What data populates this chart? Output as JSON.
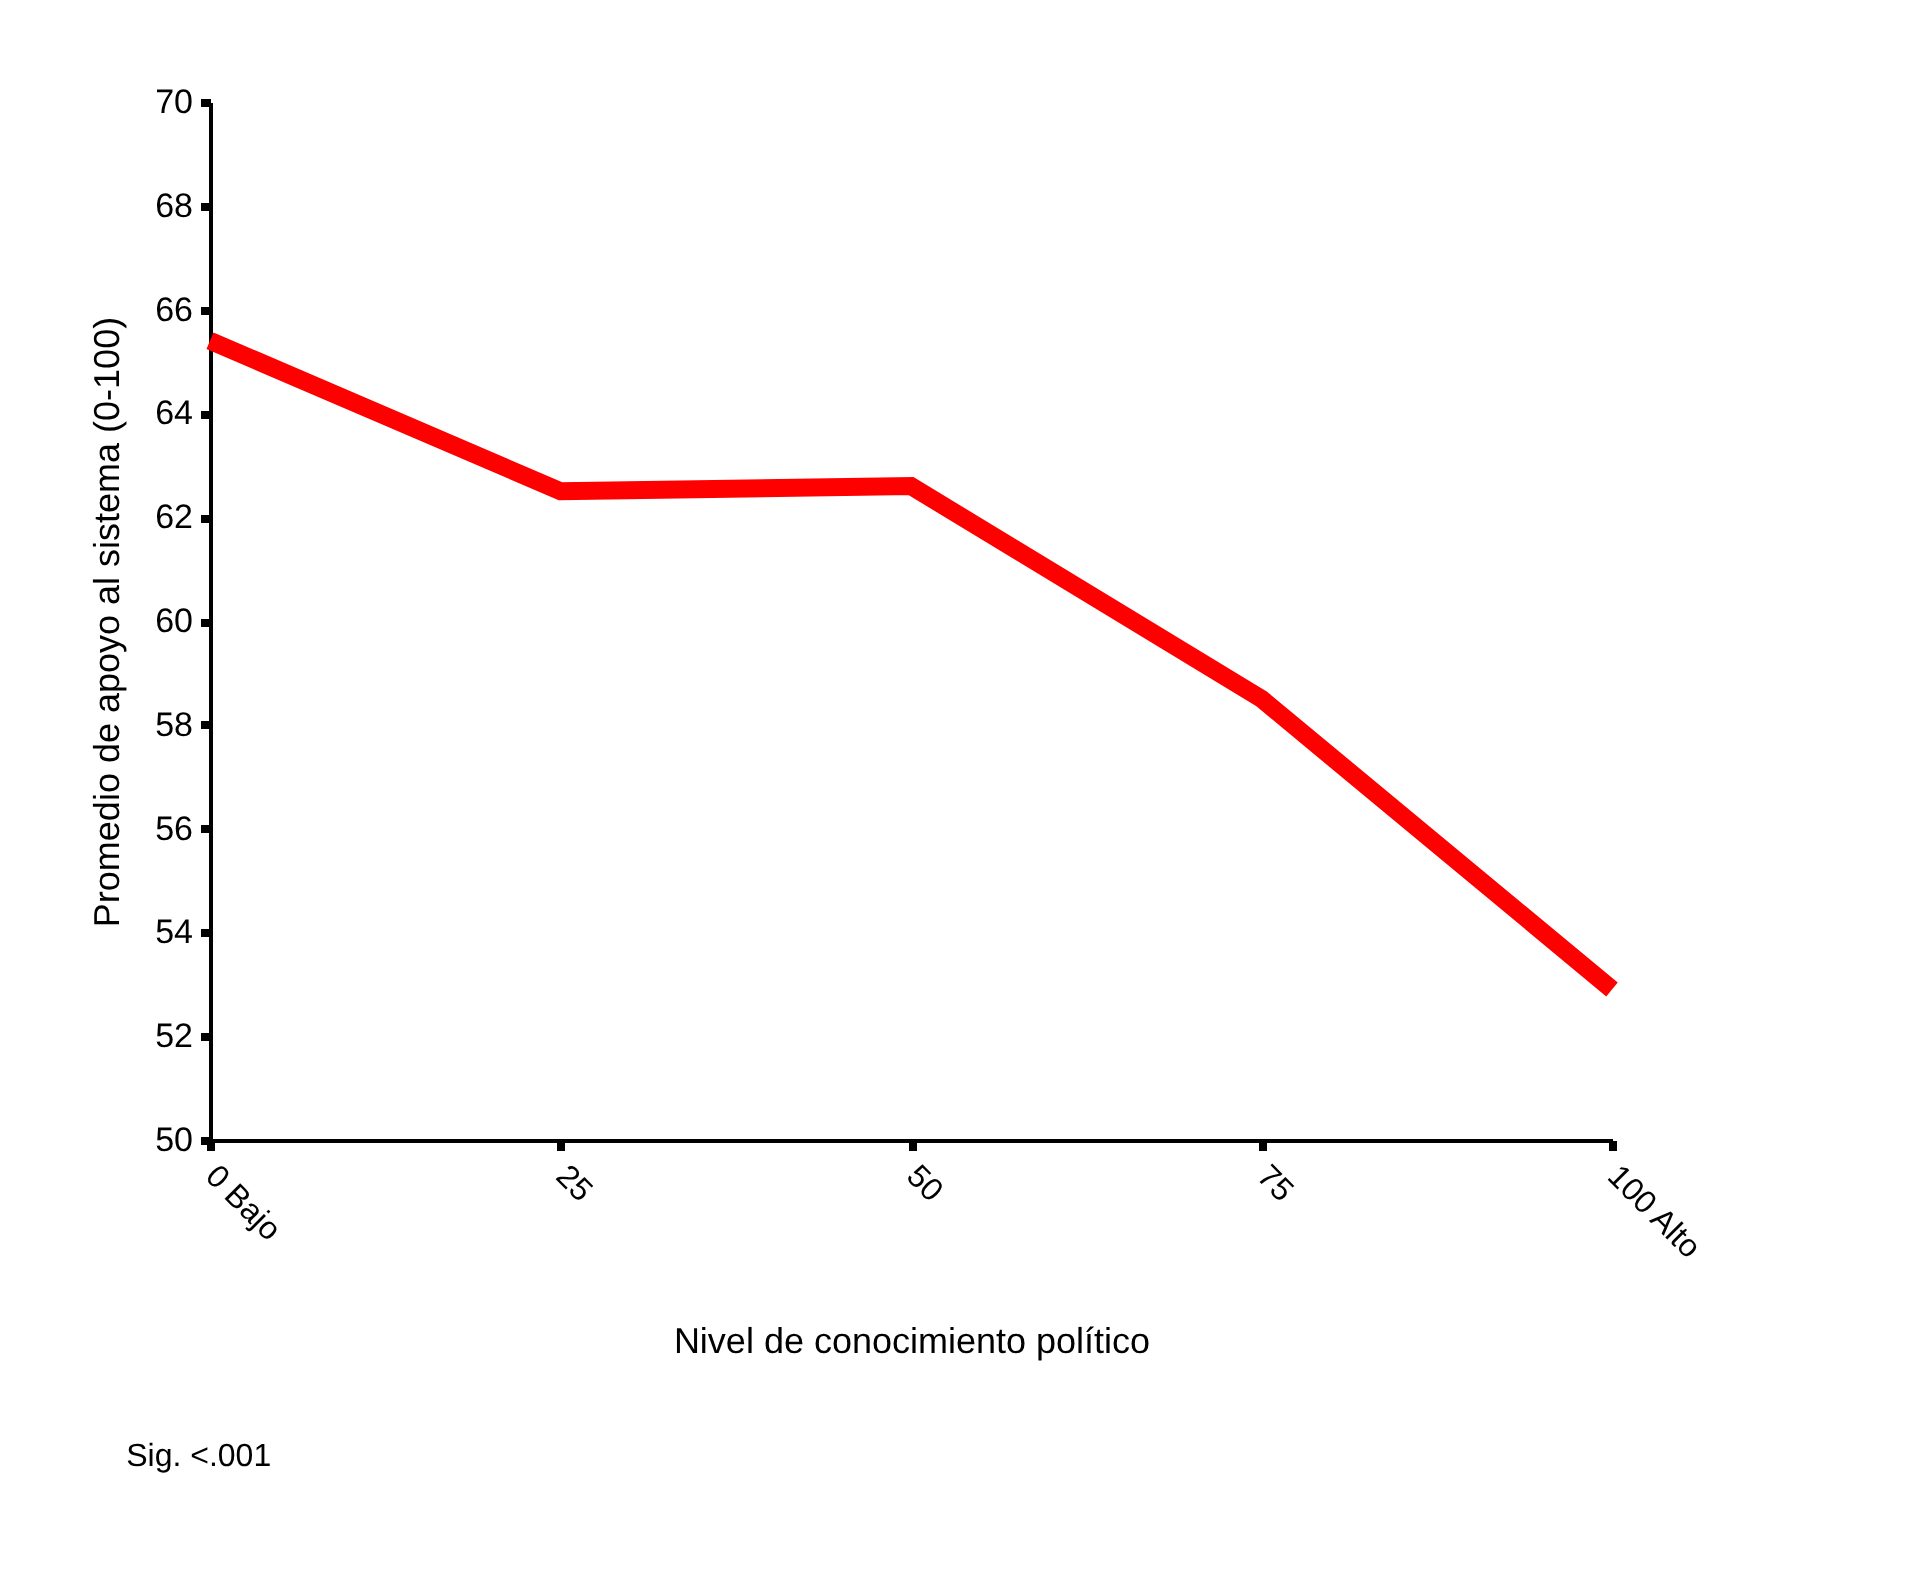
{
  "chart_data": {
    "type": "line",
    "xlabel": "Nivel de conocimiento político",
    "ylabel": "Promedio de apoyo al sistema (0-100)",
    "categories": [
      "0 Bajo",
      "25",
      "50",
      "75",
      "100 Alto"
    ],
    "series": [
      {
        "color": "#ff0000",
        "values": [
          65.4,
          62.5,
          62.6,
          58.5,
          52.9
        ]
      }
    ],
    "ylim": [
      50,
      70
    ],
    "yticks": [
      50,
      52,
      54,
      56,
      58,
      60,
      62,
      64,
      66,
      68,
      70
    ],
    "grid": false,
    "legend": false,
    "marker": "none",
    "line_style": "solid",
    "annotations": [
      "Sig. <.001"
    ]
  }
}
